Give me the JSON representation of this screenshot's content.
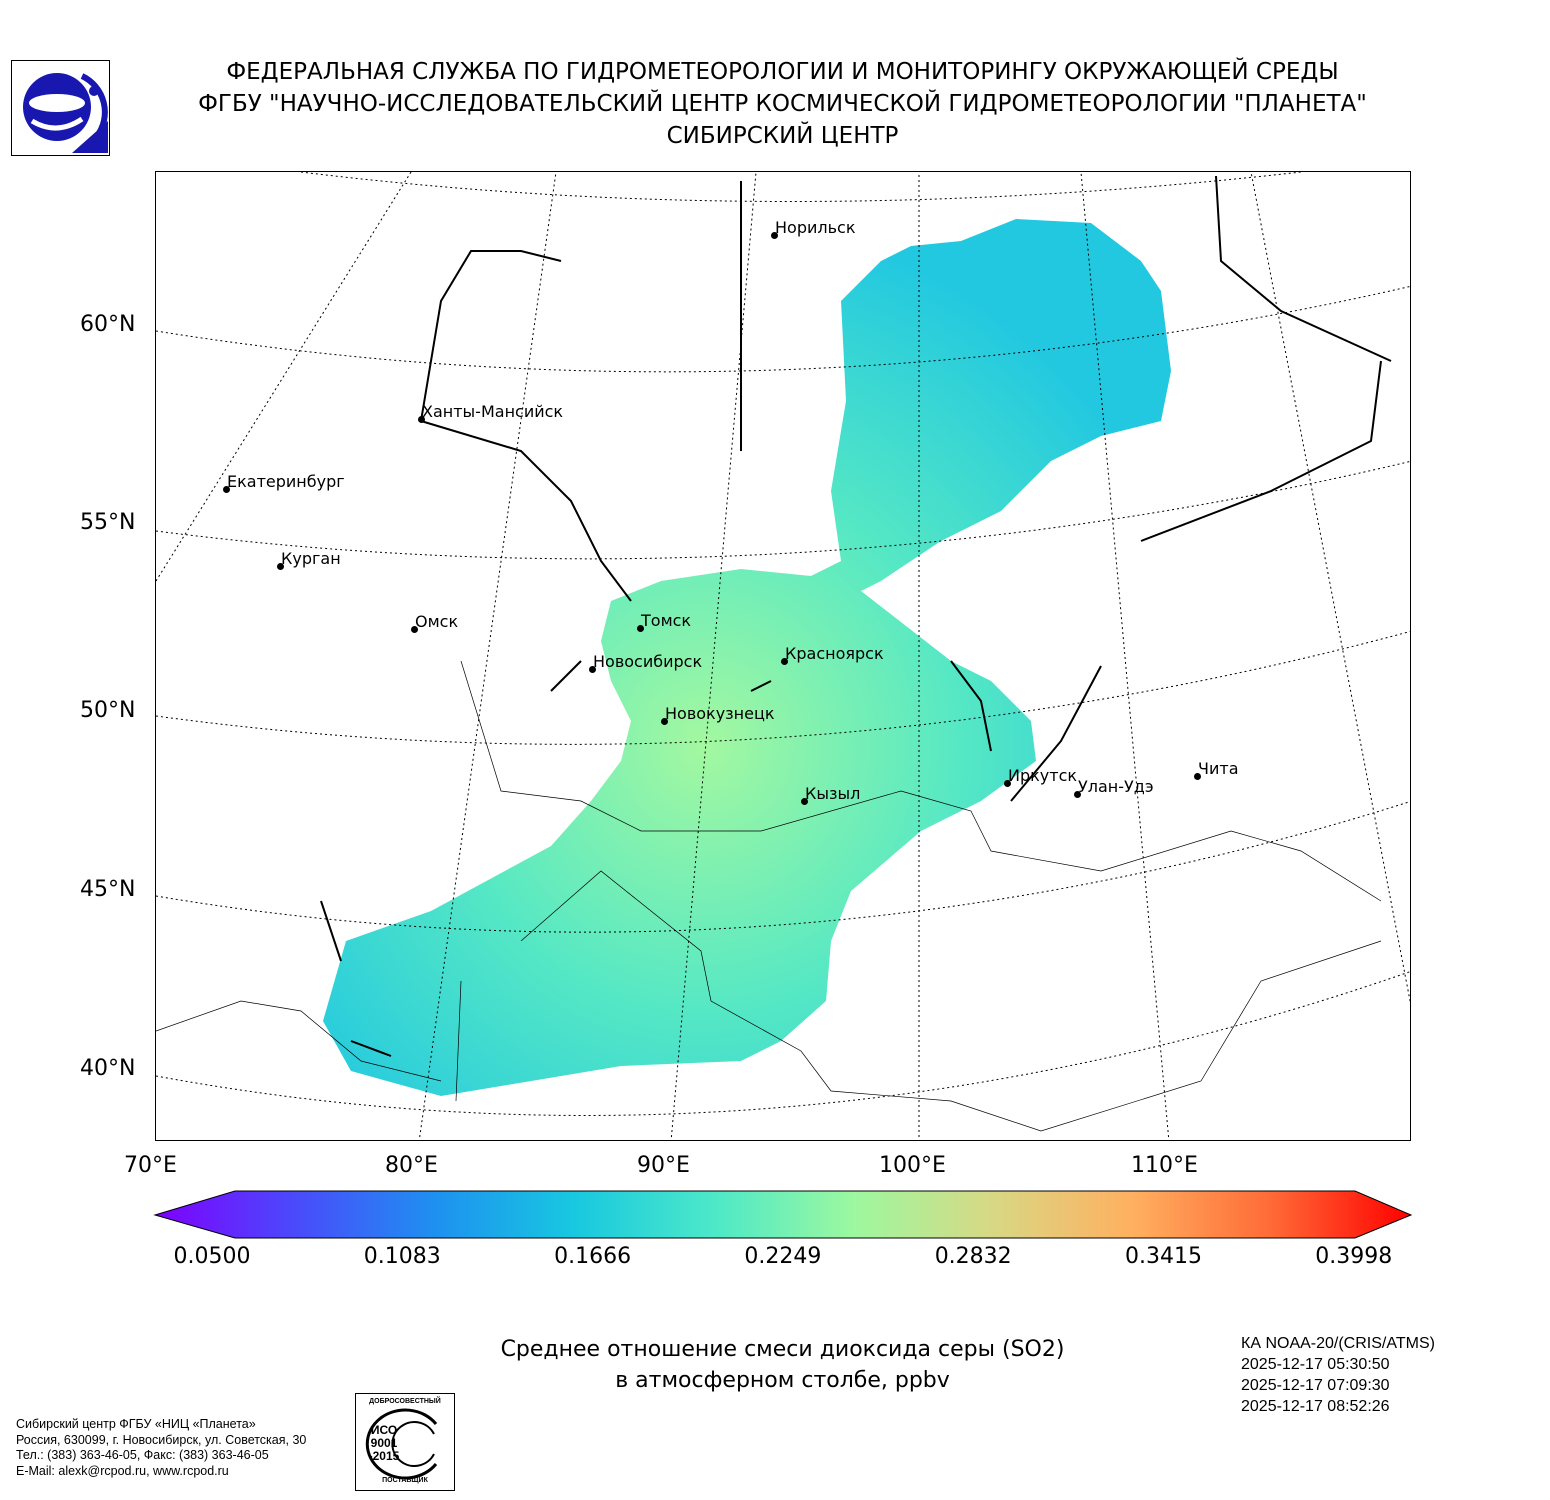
{
  "header": {
    "line1": "ФЕДЕРАЛЬНАЯ СЛУЖБА ПО ГИДРОМЕТЕОРОЛОГИИ И МОНИТОРИНГУ ОКРУЖАЮЩЕЙ СРЕДЫ",
    "line2": "ФГБУ \"НАУЧНО-ИССЛЕДОВАТЕЛЬСКИЙ ЦЕНТР КОСМИЧЕСКОЙ ГИДРОМЕТЕОРОЛОГИИ \"ПЛАНЕТА\"",
    "line3": "СИБИРСКИЙ ЦЕНТР"
  },
  "map": {
    "lat_labels": [
      "60°N",
      "55°N",
      "50°N",
      "45°N",
      "40°N"
    ],
    "lon_labels": [
      "70°E",
      "80°E",
      "90°E",
      "100°E",
      "110°E"
    ],
    "cities": [
      "Норильск",
      "Ханты-Мансийск",
      "Екатеринбург",
      "Курган",
      "Омск",
      "Томск",
      "Новосибирск",
      "Красноярск",
      "Новокузнецк",
      "Иркутск",
      "Улан-Удэ",
      "Чита",
      "Кызыл"
    ]
  },
  "colorbar": {
    "ticks": [
      "0.0500",
      "0.1083",
      "0.1666",
      "0.2249",
      "0.2832",
      "0.3415",
      "0.3998"
    ],
    "min": 0.05,
    "max": 0.3998,
    "colors": [
      "#7f00ff",
      "#4a4afb",
      "#1e90f0",
      "#18c8e0",
      "#4ce8c8",
      "#9cf8a0",
      "#d8d884",
      "#ffb060",
      "#ff6a36",
      "#ff0000"
    ]
  },
  "title": {
    "line1": "Среднее отношение смеси диоксида серы (SO2)",
    "line2": "в атмосферном столбе, ppbv"
  },
  "satellite": {
    "name": "КА NOAA-20/(CRIS/ATMS)",
    "times": [
      "2025-12-17 05:30:50",
      "2025-12-17 07:09:30",
      "2025-12-17 08:52:26"
    ]
  },
  "footer": {
    "org": "Сибирский центр ФГБУ «НИЦ «Планета»",
    "address": "Россия, 630099, г. Новосибирск, ул. Советская, 30",
    "phone": "Тел.: (383) 363-46-05, Факс: (383) 363-46-05",
    "email": "E-Mail: alexk@rcpod.ru, www.rcpod.ru"
  },
  "iso_badge": {
    "top": "ДОБРОСОВЕСТНЫЙ",
    "mid": "ИСО 9001 -2015",
    "bottom": "ПОСТАВЩИК"
  }
}
